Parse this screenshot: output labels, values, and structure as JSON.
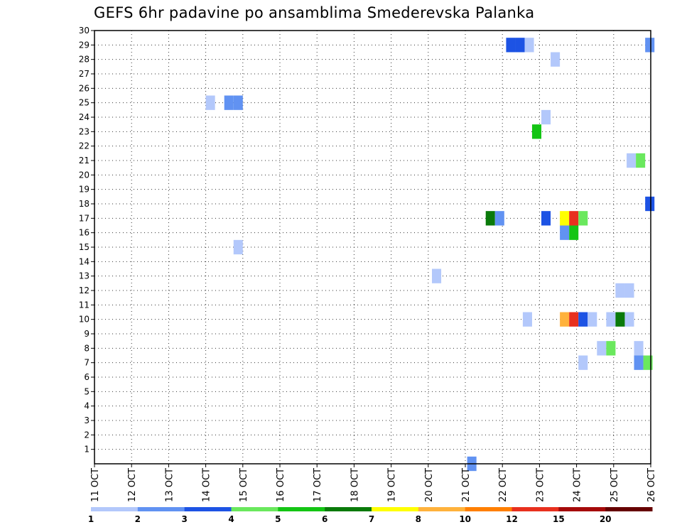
{
  "chart_data": {
    "type": "heatmap",
    "title": "GEFS 6hr padavine po ansamblima Smederevska Palanka",
    "y_ticks": [
      "1",
      "2",
      "3",
      "4",
      "5",
      "6",
      "7",
      "8",
      "9",
      "10",
      "11",
      "12",
      "13",
      "14",
      "15",
      "16",
      "17",
      "18",
      "19",
      "20",
      "21",
      "22",
      "23",
      "24",
      "25",
      "26",
      "27",
      "28",
      "29",
      "30"
    ],
    "ylim": [
      0,
      30
    ],
    "x_ticks": [
      "11 OCT",
      "12 OCT",
      "13 OCT",
      "14 OCT",
      "15 OCT",
      "16 OCT",
      "17 OCT",
      "18 OCT",
      "19 OCT",
      "20 OCT",
      "21 OCT",
      "22 OCT",
      "23 OCT",
      "24 OCT",
      "25 OCT",
      "26 OCT"
    ],
    "xlim": [
      0,
      15
    ],
    "grid": true,
    "legend": {
      "placement": "bottom",
      "colors": [
        "#b3c8fb",
        "#6192f2",
        "#1d53e4",
        "#6ae85d",
        "#14c514",
        "#0a7a0a",
        "#ffff00",
        "#ffb23c",
        "#ff7f00",
        "#e8301e",
        "#a50a0a",
        "#660000"
      ],
      "labels": [
        "1",
        "2",
        "3",
        "4",
        "5",
        "6",
        "7",
        "8",
        "10",
        "12",
        "15",
        "20"
      ]
    },
    "cells": [
      {
        "day": 11.1,
        "member": 29,
        "level": 3
      },
      {
        "day": 11.35,
        "member": 29,
        "level": 3
      },
      {
        "day": 11.6,
        "member": 29,
        "level": 1
      },
      {
        "day": 14.85,
        "member": 29,
        "level": 2
      },
      {
        "day": 12.3,
        "member": 28,
        "level": 1
      },
      {
        "day": 3.0,
        "member": 25,
        "level": 1
      },
      {
        "day": 3.5,
        "member": 25,
        "level": 2
      },
      {
        "day": 3.75,
        "member": 25,
        "level": 2
      },
      {
        "day": 12.05,
        "member": 24,
        "level": 1
      },
      {
        "day": 11.8,
        "member": 23,
        "level": 5
      },
      {
        "day": 14.35,
        "member": 21,
        "level": 1
      },
      {
        "day": 14.6,
        "member": 21,
        "level": 4
      },
      {
        "day": 14.85,
        "member": 18,
        "level": 3
      },
      {
        "day": 10.55,
        "member": 17,
        "level": 6
      },
      {
        "day": 10.8,
        "member": 17,
        "level": 2
      },
      {
        "day": 12.05,
        "member": 17,
        "level": 3
      },
      {
        "day": 12.55,
        "member": 17,
        "level": 7
      },
      {
        "day": 12.8,
        "member": 17,
        "level": 10
      },
      {
        "day": 13.05,
        "member": 17,
        "level": 4
      },
      {
        "day": 12.55,
        "member": 16,
        "level": 2
      },
      {
        "day": 12.8,
        "member": 16,
        "level": 5
      },
      {
        "day": 3.75,
        "member": 15,
        "level": 1
      },
      {
        "day": 9.1,
        "member": 13,
        "level": 1
      },
      {
        "day": 14.05,
        "member": 12,
        "level": 1
      },
      {
        "day": 14.3,
        "member": 12,
        "level": 1
      },
      {
        "day": 11.55,
        "member": 10,
        "level": 1
      },
      {
        "day": 12.55,
        "member": 10,
        "level": 8
      },
      {
        "day": 12.8,
        "member": 10,
        "level": 10
      },
      {
        "day": 13.05,
        "member": 10,
        "level": 3
      },
      {
        "day": 13.3,
        "member": 10,
        "level": 1
      },
      {
        "day": 13.8,
        "member": 10,
        "level": 1
      },
      {
        "day": 14.05,
        "member": 10,
        "level": 6
      },
      {
        "day": 14.3,
        "member": 10,
        "level": 1
      },
      {
        "day": 13.55,
        "member": 8,
        "level": 1
      },
      {
        "day": 13.8,
        "member": 8,
        "level": 4
      },
      {
        "day": 14.55,
        "member": 8,
        "level": 1
      },
      {
        "day": 13.05,
        "member": 7,
        "level": 1
      },
      {
        "day": 14.55,
        "member": 7,
        "level": 2
      },
      {
        "day": 14.8,
        "member": 7,
        "level": 4
      },
      {
        "day": 10.05,
        "member": 0,
        "level": 2
      }
    ]
  }
}
